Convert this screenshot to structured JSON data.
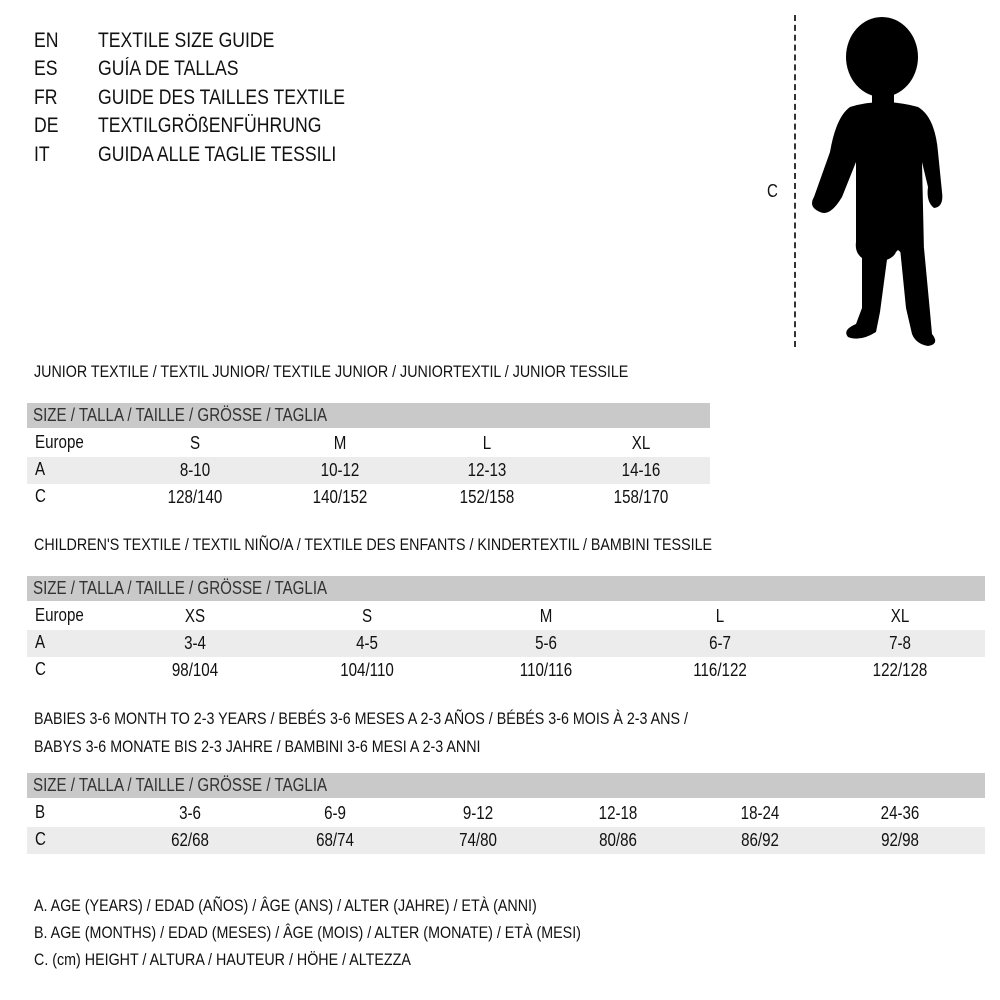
{
  "languages": [
    {
      "code": "EN",
      "title": "TEXTILE SIZE GUIDE"
    },
    {
      "code": "ES",
      "title": "GUÍA DE TALLAS"
    },
    {
      "code": "FR",
      "title": "GUIDE DES TAILLES TEXTILE"
    },
    {
      "code": "DE",
      "title": "TEXTILGRÖßENFÜHRUNG"
    },
    {
      "code": "IT",
      "title": "GUIDA ALLE TAGLIE TESSILI"
    }
  ],
  "figure": {
    "measure_label": "C",
    "icon": "child-silhouette"
  },
  "sections": [
    {
      "title_lines": [
        "JUNIOR TEXTILE / TEXTIL JUNIOR/ TEXTILE JUNIOR / JUNIORTEXTIL / JUNIOR TESSILE"
      ],
      "header": "SIZE / TALLA / TAILLE / GRÖSSE / TAGLIA",
      "rows": [
        {
          "label": "Europe",
          "values": [
            "S",
            "M",
            "L",
            "XL"
          ]
        },
        {
          "label": "A",
          "values": [
            "8-10",
            "10-12",
            "12-13",
            "14-16"
          ]
        },
        {
          "label": "C",
          "values": [
            "128/140",
            "140/152",
            "152/158",
            "158/170"
          ]
        }
      ]
    },
    {
      "title_lines": [
        "CHILDREN'S TEXTILE / TEXTIL NIÑO/A / TEXTILE DES ENFANTS / KINDERTEXTIL / BAMBINI TESSILE"
      ],
      "header": "SIZE / TALLA / TAILLE / GRÖSSE / TAGLIA",
      "rows": [
        {
          "label": "Europe",
          "values": [
            "XS",
            "S",
            "M",
            "L",
            "XL"
          ]
        },
        {
          "label": "A",
          "values": [
            "3-4",
            "4-5",
            "5-6",
            "6-7",
            "7-8"
          ]
        },
        {
          "label": "C",
          "values": [
            "98/104",
            "104/110",
            "110/116",
            "116/122",
            "122/128"
          ]
        }
      ]
    },
    {
      "title_lines": [
        "BABIES 3-6 MONTH TO 2-3 YEARS / BEBÉS 3-6 MESES A 2-3 AÑOS / BÉBÉS 3-6 MOIS À 2-3 ANS /",
        "BABYS 3-6 MONATE BIS 2-3 JAHRE / BAMBINI 3-6 MESI A 2-3 ANNI"
      ],
      "header": "SIZE / TALLA / TAILLE / GRÖSSE / TAGLIA",
      "rows": [
        {
          "label": "B",
          "values": [
            "3-6",
            "6-9",
            "9-12",
            "12-18",
            "18-24",
            "24-36"
          ]
        },
        {
          "label": "C",
          "values": [
            "62/68",
            "68/74",
            "74/80",
            "80/86",
            "86/92",
            "92/98"
          ]
        }
      ]
    }
  ],
  "legend": [
    "A. AGE (YEARS) / EDAD (AÑOS) / ÂGE (ANS) / ALTER (JAHRE) / ETÀ (ANNI)",
    "B. AGE (MONTHS) / EDAD (MESES) / ÂGE (MOIS) / ALTER (MONATE) / ETÀ (MESI)",
    "C. (cm) HEIGHT / ALTURA / HAUTEUR / HÖHE / ALTEZZA"
  ],
  "colors": {
    "header_bg": "#c9c9c9",
    "alt_row_bg": "#ececec",
    "text": "#111111"
  }
}
